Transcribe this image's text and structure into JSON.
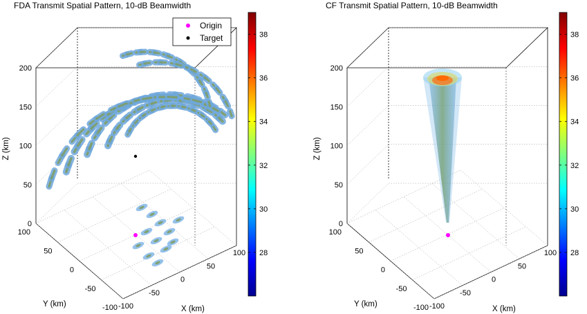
{
  "chart_data": [
    {
      "type": "3d-isosurface",
      "title": "FDA Transmit Spatial Pattern, 10-dB Beamwidth",
      "xlabel": "X (km)",
      "ylabel": "Y (km)",
      "zlabel": "Z (km)",
      "xlim": [
        -100,
        100
      ],
      "ylim": [
        -100,
        100
      ],
      "zlim": [
        0,
        200
      ],
      "xticks": [
        "-100",
        "-50",
        "0",
        "50",
        "100"
      ],
      "yticks": [
        "-100",
        "-50",
        "0",
        "50",
        "100"
      ],
      "zticks": [
        "0",
        "50",
        "100",
        "150",
        "200"
      ],
      "grid": true,
      "colorbar": {
        "colormap": "jet",
        "range": [
          26,
          39
        ],
        "ticks": [
          "28",
          "30",
          "32",
          "34",
          "36",
          "38"
        ]
      },
      "legend": {
        "position": "top-right",
        "entries": [
          {
            "name": "Origin",
            "color": "#ff00ff"
          },
          {
            "name": "Target",
            "color": "#000000"
          }
        ]
      },
      "markers": [
        {
          "name": "Origin",
          "x": 0,
          "y": 0,
          "z": 0
        },
        {
          "name": "Target",
          "x": 0,
          "y": 0,
          "z": 100
        }
      ]
    },
    {
      "type": "3d-isosurface",
      "title": "CF Transmit Spatial Pattern, 10-dB Beamwidth",
      "xlabel": "X (km)",
      "ylabel": "Y (km)",
      "zlabel": "Z (km)",
      "xlim": [
        -100,
        100
      ],
      "ylim": [
        -100,
        100
      ],
      "zlim": [
        0,
        200
      ],
      "xticks": [
        "-100",
        "-50",
        "0",
        "50",
        "100"
      ],
      "yticks": [
        "-100",
        "-50",
        "0",
        "50",
        "100"
      ],
      "zticks": [
        "0",
        "50",
        "100",
        "150",
        "200"
      ],
      "grid": true,
      "colorbar": {
        "colormap": "jet",
        "range": [
          26,
          39
        ],
        "ticks": [
          "28",
          "30",
          "32",
          "34",
          "36",
          "38"
        ]
      },
      "markers": [
        {
          "name": "Origin",
          "x": 0,
          "y": 0,
          "z": 0
        }
      ]
    }
  ]
}
